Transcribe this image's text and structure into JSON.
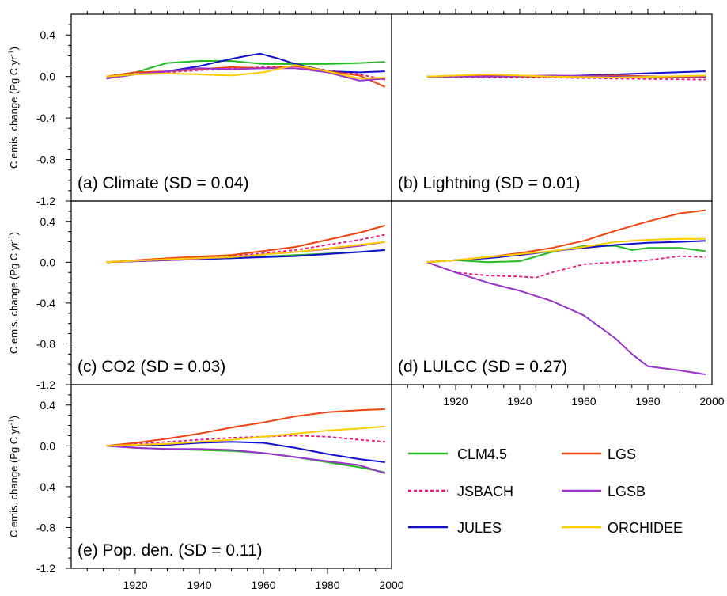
{
  "figure": {
    "ylabel": "C emis. change (Pg C yr",
    "ylabel_sup": "-1",
    "ylabel_close": ")"
  },
  "legend": {
    "items": [
      {
        "label": "CLM4.5",
        "color": "#22bb22",
        "dashed": false
      },
      {
        "label": "LGS",
        "color": "#ee4411",
        "dashed": false
      },
      {
        "label": "JSBACH",
        "color": "#ee1177",
        "dashed": true
      },
      {
        "label": "LGSB",
        "color": "#9933cc",
        "dashed": false
      },
      {
        "label": "JULES",
        "color": "#1111cc",
        "dashed": false
      },
      {
        "label": "ORCHIDEE",
        "color": "#ffcc00",
        "dashed": false
      }
    ]
  },
  "chart_data": [
    {
      "type": "line",
      "panel": "(a)",
      "title": "(a) Climate (SD = 0.04)",
      "ylabel": "C emis. change (Pg C yr-1)",
      "x_ticks": [
        1920,
        1940,
        1960,
        1980,
        2000
      ],
      "xlim": [
        1900,
        2000
      ],
      "ylim": [
        -1.2,
        0.6
      ],
      "y_ticks": [
        -1.2,
        -0.8,
        -0.4,
        0.0,
        0.4
      ],
      "y_tick_labels": [
        "-1.2",
        "-0.8",
        "-0.4",
        "0.0",
        "0.4"
      ],
      "series": [
        {
          "name": "CLM4.5",
          "x": [
            1911,
            1920,
            1930,
            1940,
            1950,
            1960,
            1970,
            1980,
            1990,
            1998
          ],
          "y": [
            0.0,
            0.04,
            0.13,
            0.15,
            0.15,
            0.12,
            0.12,
            0.12,
            0.13,
            0.14
          ]
        },
        {
          "name": "JSBACH",
          "x": [
            1911,
            1920,
            1930,
            1940,
            1950,
            1960,
            1970,
            1980,
            1990,
            1998
          ],
          "y": [
            0.0,
            0.02,
            0.04,
            0.06,
            0.08,
            0.09,
            0.1,
            0.06,
            0.02,
            -0.03
          ]
        },
        {
          "name": "JULES",
          "x": [
            1911,
            1920,
            1930,
            1940,
            1950,
            1955,
            1959,
            1965,
            1970,
            1980,
            1990,
            1998
          ],
          "y": [
            -0.01,
            0.02,
            0.05,
            0.1,
            0.17,
            0.2,
            0.22,
            0.17,
            0.12,
            0.05,
            0.04,
            0.05
          ]
        },
        {
          "name": "LGS",
          "x": [
            1911,
            1920,
            1930,
            1940,
            1950,
            1960,
            1970,
            1980,
            1990,
            1998
          ],
          "y": [
            0.0,
            0.04,
            0.05,
            0.07,
            0.09,
            0.08,
            0.1,
            0.05,
            0.01,
            -0.1
          ]
        },
        {
          "name": "LGSB",
          "x": [
            1911,
            1920,
            1930,
            1940,
            1950,
            1960,
            1970,
            1980,
            1990,
            1998
          ],
          "y": [
            -0.02,
            0.02,
            0.05,
            0.08,
            0.07,
            0.08,
            0.08,
            0.04,
            -0.04,
            -0.02
          ]
        },
        {
          "name": "ORCHIDEE",
          "x": [
            1911,
            1920,
            1930,
            1940,
            1950,
            1960,
            1970,
            1980,
            1990,
            1998
          ],
          "y": [
            0.0,
            0.02,
            0.03,
            0.02,
            0.01,
            0.04,
            0.11,
            0.05,
            -0.02,
            -0.01
          ]
        }
      ]
    },
    {
      "type": "line",
      "panel": "(b)",
      "title": "(b) Lightning (SD = 0.01)",
      "x_ticks": [
        1920,
        1940,
        1960,
        1980,
        2000
      ],
      "xlim": [
        1900,
        2000
      ],
      "ylim": [
        -1.2,
        0.6
      ],
      "series": [
        {
          "name": "CLM4.5",
          "x": [
            1911,
            1930,
            1950,
            1970,
            1998
          ],
          "y": [
            0.0,
            0.0,
            0.0,
            -0.01,
            -0.01
          ]
        },
        {
          "name": "JSBACH",
          "x": [
            1911,
            1930,
            1950,
            1970,
            1998
          ],
          "y": [
            0.0,
            -0.01,
            -0.01,
            -0.02,
            -0.03
          ]
        },
        {
          "name": "JULES",
          "x": [
            1911,
            1930,
            1950,
            1970,
            1998
          ],
          "y": [
            0.0,
            0.01,
            0.0,
            0.02,
            0.05
          ]
        },
        {
          "name": "LGS",
          "x": [
            1911,
            1930,
            1950,
            1970,
            1998
          ],
          "y": [
            0.0,
            0.01,
            0.0,
            0.01,
            -0.01
          ]
        },
        {
          "name": "LGSB",
          "x": [
            1911,
            1930,
            1950,
            1970,
            1998
          ],
          "y": [
            0.0,
            0.0,
            0.01,
            0.0,
            0.0
          ]
        },
        {
          "name": "ORCHIDEE",
          "x": [
            1911,
            1930,
            1950,
            1970,
            1998
          ],
          "y": [
            0.0,
            0.02,
            0.0,
            -0.01,
            0.01
          ]
        }
      ]
    },
    {
      "type": "line",
      "panel": "(c)",
      "title": "(c) CO2 (SD = 0.03)",
      "ylabel": "C emis. change (Pg C yr-1)",
      "x_ticks": [
        1920,
        1940,
        1960,
        1980,
        2000
      ],
      "xlim": [
        1900,
        2000
      ],
      "ylim": [
        -1.2,
        0.6
      ],
      "y_ticks": [
        -1.2,
        -0.8,
        -0.4,
        0.0,
        0.4
      ],
      "y_tick_labels": [
        "-1.2",
        "-0.8",
        "-0.4",
        "0.0",
        "0.4"
      ],
      "series": [
        {
          "name": "CLM4.5",
          "x": [
            1911,
            1930,
            1950,
            1970,
            1990,
            1998
          ],
          "y": [
            0.0,
            0.02,
            0.04,
            0.07,
            0.1,
            0.12
          ]
        },
        {
          "name": "JSBACH",
          "x": [
            1911,
            1930,
            1950,
            1970,
            1990,
            1998
          ],
          "y": [
            0.0,
            0.03,
            0.06,
            0.12,
            0.22,
            0.27
          ]
        },
        {
          "name": "JULES",
          "x": [
            1911,
            1930,
            1950,
            1970,
            1990,
            1998
          ],
          "y": [
            0.0,
            0.02,
            0.04,
            0.06,
            0.1,
            0.12
          ]
        },
        {
          "name": "LGS",
          "x": [
            1911,
            1930,
            1950,
            1970,
            1990,
            1998
          ],
          "y": [
            0.0,
            0.04,
            0.07,
            0.15,
            0.29,
            0.36
          ]
        },
        {
          "name": "LGSB",
          "x": [
            1911,
            1930,
            1950,
            1970,
            1990,
            1998
          ],
          "y": [
            0.0,
            0.02,
            0.05,
            0.1,
            0.16,
            0.2
          ]
        },
        {
          "name": "ORCHIDEE",
          "x": [
            1911,
            1930,
            1950,
            1970,
            1990,
            1998
          ],
          "y": [
            0.0,
            0.03,
            0.05,
            0.1,
            0.17,
            0.2
          ]
        }
      ]
    },
    {
      "type": "line",
      "panel": "(d)",
      "title": "(d) LULCC (SD = 0.27)",
      "x_ticks": [
        1920,
        1940,
        1960,
        1980,
        2000
      ],
      "x_tick_labels": [
        "1920",
        "1940",
        "1960",
        "1980",
        "2000"
      ],
      "xlim": [
        1900,
        2000
      ],
      "ylim": [
        -1.2,
        0.6
      ],
      "series": [
        {
          "name": "CLM4.5",
          "x": [
            1911,
            1920,
            1930,
            1940,
            1950,
            1960,
            1970,
            1975,
            1980,
            1990,
            1998
          ],
          "y": [
            0.0,
            0.02,
            0.0,
            0.01,
            0.1,
            0.16,
            0.16,
            0.12,
            0.14,
            0.14,
            0.11
          ]
        },
        {
          "name": "JSBACH",
          "x": [
            1911,
            1920,
            1930,
            1940,
            1945,
            1950,
            1960,
            1970,
            1980,
            1990,
            1998
          ],
          "y": [
            0.0,
            -0.1,
            -0.13,
            -0.14,
            -0.15,
            -0.1,
            -0.02,
            0.0,
            0.02,
            0.06,
            0.05
          ]
        },
        {
          "name": "JULES",
          "x": [
            1911,
            1920,
            1930,
            1940,
            1950,
            1960,
            1970,
            1980,
            1990,
            1998
          ],
          "y": [
            0.0,
            0.02,
            0.04,
            0.07,
            0.11,
            0.14,
            0.17,
            0.19,
            0.2,
            0.21
          ]
        },
        {
          "name": "LGS",
          "x": [
            1911,
            1920,
            1930,
            1940,
            1950,
            1960,
            1970,
            1980,
            1990,
            1998
          ],
          "y": [
            0.0,
            0.02,
            0.05,
            0.09,
            0.14,
            0.21,
            0.31,
            0.4,
            0.48,
            0.51
          ]
        },
        {
          "name": "LGSB",
          "x": [
            1911,
            1920,
            1930,
            1940,
            1950,
            1960,
            1970,
            1975,
            1980,
            1990,
            1998
          ],
          "y": [
            0.0,
            -0.1,
            -0.2,
            -0.28,
            -0.38,
            -0.52,
            -0.75,
            -0.9,
            -1.02,
            -1.06,
            -1.1
          ]
        },
        {
          "name": "ORCHIDEE",
          "x": [
            1911,
            1920,
            1930,
            1940,
            1950,
            1960,
            1970,
            1980,
            1990,
            1998
          ],
          "y": [
            0.0,
            0.02,
            0.05,
            0.08,
            0.11,
            0.15,
            0.2,
            0.22,
            0.23,
            0.23
          ]
        }
      ]
    },
    {
      "type": "line",
      "panel": "(e)",
      "title": "(e) Pop. den. (SD = 0.11)",
      "ylabel": "C emis. change (Pg C yr-1)",
      "x_ticks": [
        1920,
        1940,
        1960,
        1980,
        2000
      ],
      "x_tick_labels": [
        "1920",
        "1940",
        "1960",
        "1980",
        "2000"
      ],
      "xlim": [
        1900,
        2000
      ],
      "ylim": [
        -1.2,
        0.6
      ],
      "y_ticks": [
        -1.2,
        -0.8,
        -0.4,
        0.0,
        0.4
      ],
      "y_tick_labels": [
        "-1.2",
        "-0.8",
        "-0.4",
        "0.0",
        "0.4"
      ],
      "series": [
        {
          "name": "CLM4.5",
          "x": [
            1911,
            1920,
            1930,
            1940,
            1950,
            1960,
            1970,
            1980,
            1990,
            1998
          ],
          "y": [
            0.0,
            -0.02,
            -0.03,
            -0.04,
            -0.05,
            -0.07,
            -0.11,
            -0.16,
            -0.21,
            -0.26
          ]
        },
        {
          "name": "JSBACH",
          "x": [
            1911,
            1920,
            1930,
            1940,
            1950,
            1960,
            1970,
            1980,
            1990,
            1998
          ],
          "y": [
            0.0,
            0.02,
            0.04,
            0.06,
            0.08,
            0.09,
            0.1,
            0.09,
            0.06,
            0.04
          ]
        },
        {
          "name": "JULES",
          "x": [
            1911,
            1920,
            1930,
            1940,
            1950,
            1960,
            1970,
            1980,
            1990,
            1998
          ],
          "y": [
            0.0,
            0.0,
            0.01,
            0.03,
            0.04,
            0.03,
            -0.02,
            -0.08,
            -0.13,
            -0.16
          ]
        },
        {
          "name": "LGS",
          "x": [
            1911,
            1920,
            1930,
            1940,
            1950,
            1960,
            1970,
            1980,
            1990,
            1998
          ],
          "y": [
            0.0,
            0.03,
            0.07,
            0.12,
            0.18,
            0.23,
            0.29,
            0.33,
            0.35,
            0.36
          ]
        },
        {
          "name": "LGSB",
          "x": [
            1911,
            1920,
            1930,
            1940,
            1950,
            1960,
            1970,
            1980,
            1990,
            1998
          ],
          "y": [
            0.0,
            -0.02,
            -0.03,
            -0.03,
            -0.04,
            -0.07,
            -0.11,
            -0.15,
            -0.19,
            -0.27
          ]
        },
        {
          "name": "ORCHIDEE",
          "x": [
            1911,
            1920,
            1930,
            1940,
            1950,
            1960,
            1970,
            1980,
            1990,
            1998
          ],
          "y": [
            0.0,
            0.01,
            0.02,
            0.04,
            0.06,
            0.09,
            0.12,
            0.15,
            0.17,
            0.19
          ]
        }
      ]
    }
  ]
}
